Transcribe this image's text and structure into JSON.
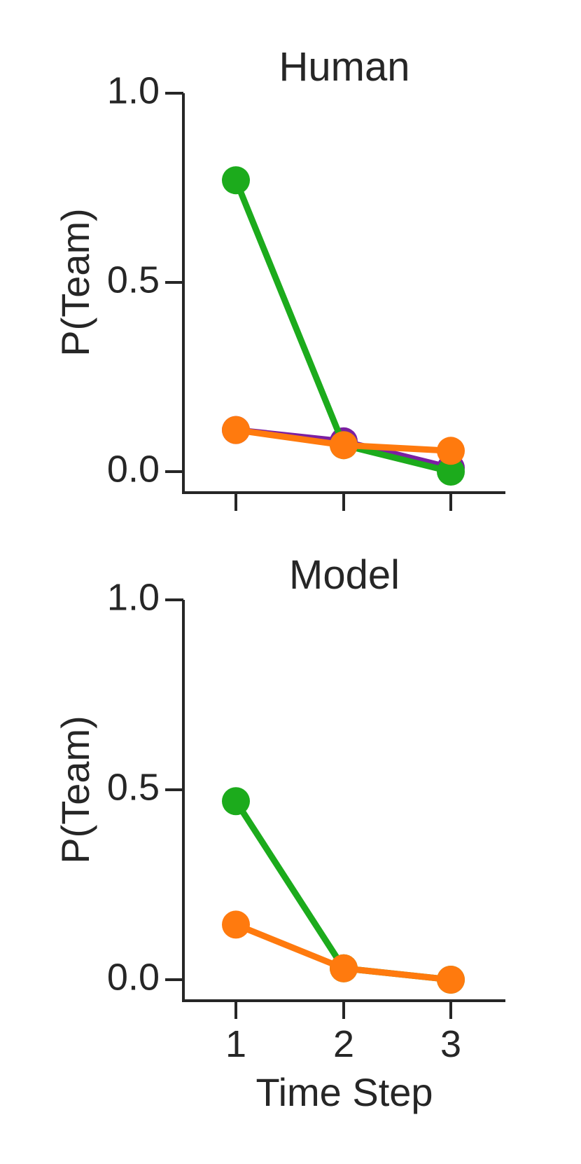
{
  "chart_data": [
    {
      "type": "line",
      "title": "Human",
      "ylabel": "P(Team)",
      "xlabel": "",
      "x": [
        1,
        2,
        3
      ],
      "xticklabels": [
        "",
        "",
        ""
      ],
      "yticks": [
        0.0,
        0.5,
        1.0
      ],
      "yticklabels": [
        "0.0",
        "0.5",
        "1.0"
      ],
      "ylim": [
        -0.05,
        1.0
      ],
      "series": [
        {
          "color": "#7B1FA2",
          "values": [
            0.11,
            0.08,
            0.01
          ]
        },
        {
          "color": "#1CAB1C",
          "values": [
            0.77,
            0.07,
            0.0
          ]
        },
        {
          "color": "#FF7A0E",
          "values": [
            0.11,
            0.07,
            0.055
          ]
        }
      ]
    },
    {
      "type": "line",
      "title": "Model",
      "ylabel": "P(Team)",
      "xlabel": "Time Step",
      "x": [
        1,
        2,
        3
      ],
      "xticklabels": [
        "1",
        "2",
        "3"
      ],
      "yticks": [
        0.0,
        0.5,
        1.0
      ],
      "yticklabels": [
        "0.0",
        "0.5",
        "1.0"
      ],
      "ylim": [
        -0.05,
        1.0
      ],
      "series": [
        {
          "color": "#1CAB1C",
          "values": [
            0.47,
            0.03,
            0.0
          ]
        },
        {
          "color": "#FF7A0E",
          "values": [
            0.145,
            0.03,
            0.0
          ]
        }
      ]
    }
  ]
}
